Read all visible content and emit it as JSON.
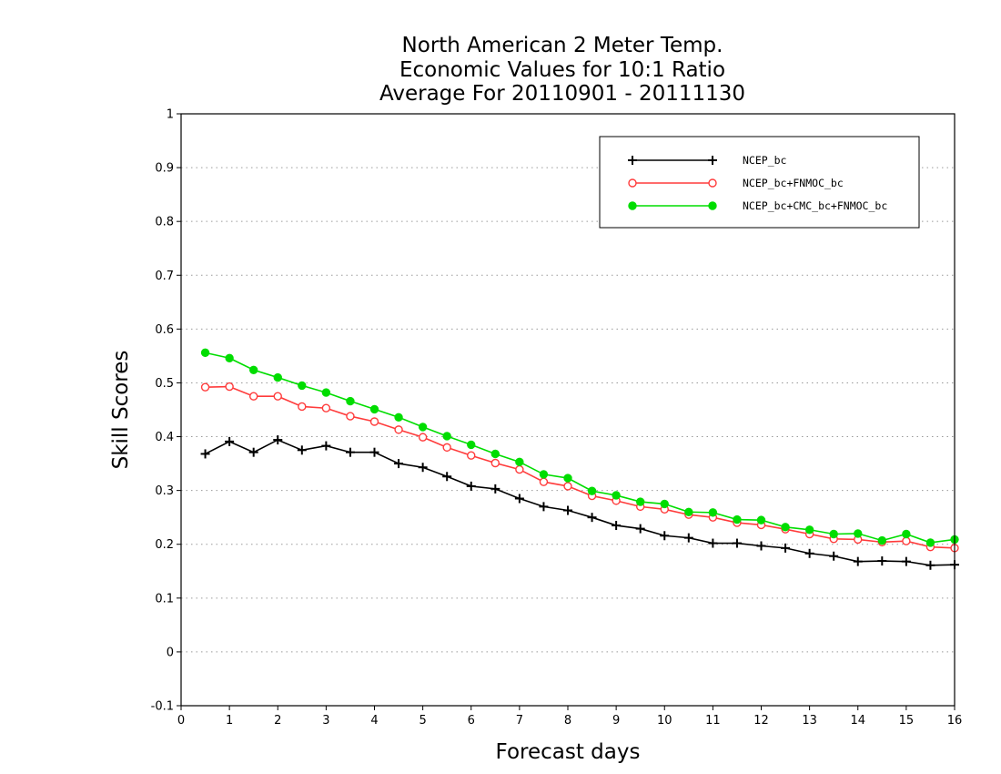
{
  "chart_data": {
    "type": "line",
    "title": [
      "North American 2 Meter Temp.",
      "Economic Values for 10:1 Ratio",
      "Average For 20110901 - 20111130"
    ],
    "xlabel": "Forecast days",
    "ylabel": "Skill Scores",
    "xlim": [
      0,
      16
    ],
    "ylim": [
      -0.1,
      1
    ],
    "xticks": [
      0,
      1,
      2,
      3,
      4,
      5,
      6,
      7,
      8,
      9,
      10,
      11,
      12,
      13,
      14,
      15,
      16
    ],
    "yticks": [
      -0.1,
      0,
      0.1,
      0.2,
      0.3,
      0.4,
      0.5,
      0.6,
      0.7,
      0.8,
      0.9,
      1
    ],
    "ytick_labels": [
      "-0.1",
      "0",
      "0.1",
      "0.2",
      "0.3",
      "0.4",
      "0.5",
      "0.6",
      "0.7",
      "0.8",
      "0.9",
      "1"
    ],
    "grid": "horizontal dotted",
    "legend_position": "top-right",
    "x": [
      0.5,
      1,
      1.5,
      2,
      2.5,
      3,
      3.5,
      4,
      4.5,
      5,
      5.5,
      6,
      6.5,
      7,
      7.5,
      8,
      8.5,
      9,
      9.5,
      10,
      10.5,
      11,
      11.5,
      12,
      12.5,
      13,
      13.5,
      14,
      14.5,
      15,
      15.5,
      16
    ],
    "series": [
      {
        "name": "NCEP_bc",
        "color": "#000000",
        "marker": "plus",
        "values": [
          0.368,
          0.391,
          0.371,
          0.394,
          0.375,
          0.383,
          0.371,
          0.371,
          0.35,
          0.343,
          0.326,
          0.308,
          0.303,
          0.285,
          0.27,
          0.263,
          0.25,
          0.235,
          0.229,
          0.216,
          0.212,
          0.202,
          0.202,
          0.197,
          0.193,
          0.183,
          0.178,
          0.168,
          0.169,
          0.168,
          0.161,
          0.162
        ]
      },
      {
        "name": "NCEP_bc+FNMOC_bc",
        "color": "#ff3b3b",
        "marker": "open-circle",
        "values": [
          0.492,
          0.493,
          0.475,
          0.475,
          0.456,
          0.453,
          0.438,
          0.428,
          0.413,
          0.399,
          0.38,
          0.365,
          0.351,
          0.339,
          0.316,
          0.308,
          0.29,
          0.281,
          0.27,
          0.265,
          0.255,
          0.25,
          0.24,
          0.236,
          0.228,
          0.219,
          0.21,
          0.209,
          0.204,
          0.206,
          0.195,
          0.193
        ]
      },
      {
        "name": "NCEP_bc+CMC_bc+FNMOC_bc",
        "color": "#00dd00",
        "marker": "filled-circle",
        "values": [
          0.556,
          0.546,
          0.524,
          0.51,
          0.495,
          0.482,
          0.466,
          0.451,
          0.436,
          0.418,
          0.401,
          0.385,
          0.368,
          0.353,
          0.33,
          0.323,
          0.299,
          0.291,
          0.279,
          0.275,
          0.26,
          0.259,
          0.246,
          0.245,
          0.232,
          0.227,
          0.219,
          0.22,
          0.207,
          0.219,
          0.203,
          0.209
        ]
      }
    ]
  }
}
